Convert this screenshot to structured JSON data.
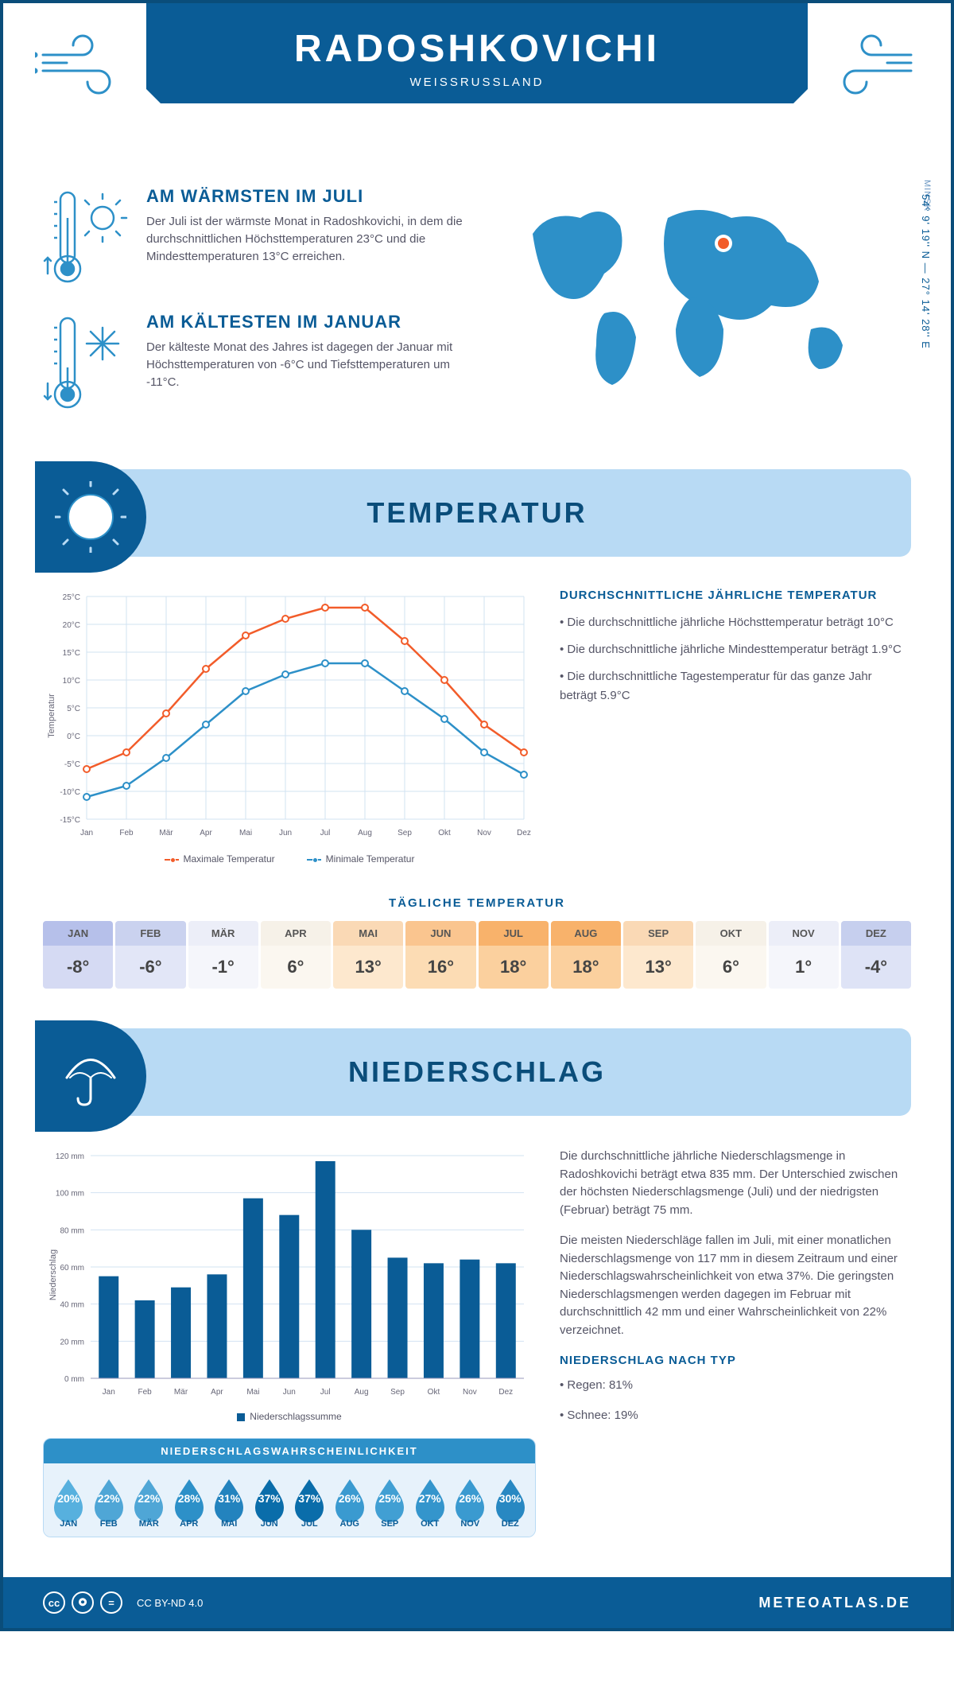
{
  "header": {
    "city": "RADOSHKOVICHI",
    "country": "WEISSRUSSLAND"
  },
  "coords": "54° 9' 19'' N — 27° 14' 28'' E",
  "city_label": "MINSK",
  "warm": {
    "title": "AM WÄRMSTEN IM JULI",
    "body": "Der Juli ist der wärmste Monat in Radoshkovichi, in dem die durchschnittlichen Höchsttemperaturen 23°C und die Mindesttemperaturen 13°C erreichen."
  },
  "cold": {
    "title": "AM KÄLTESTEN IM JANUAR",
    "body": "Der kälteste Monat des Jahres ist dagegen der Januar mit Höchsttemperaturen von -6°C und Tiefsttemperaturen um -11°C."
  },
  "temp": {
    "section_title": "TEMPERATUR",
    "months": [
      "Jan",
      "Feb",
      "Mär",
      "Apr",
      "Mai",
      "Jun",
      "Jul",
      "Aug",
      "Sep",
      "Okt",
      "Nov",
      "Dez"
    ],
    "max_series": [
      -6,
      -3,
      4,
      12,
      18,
      21,
      23,
      23,
      17,
      10,
      2,
      -3
    ],
    "min_series": [
      -11,
      -9,
      -4,
      2,
      8,
      11,
      13,
      13,
      8,
      3,
      -3,
      -7
    ],
    "max_color": "#f25c2a",
    "min_color": "#2d90c8",
    "ylim": [
      -15,
      25
    ],
    "ytick_step": 5,
    "y_unit": "°C",
    "y_title": "Temperatur",
    "grid_color": "#d2e3f2",
    "legend_max": "Maximale Temperatur",
    "legend_min": "Minimale Temperatur",
    "avg_title": "DURCHSCHNITTLICHE JÄHRLICHE TEMPERATUR",
    "avg_points": [
      "• Die durchschnittliche jährliche Höchsttemperatur beträgt 10°C",
      "• Die durchschnittliche jährliche Mindesttemperatur beträgt 1.9°C",
      "• Die durchschnittliche Tagestemperatur für das ganze Jahr beträgt 5.9°C"
    ],
    "daily_title": "TÄGLICHE TEMPERATUR",
    "daily_vals": [
      "-8°",
      "-6°",
      "-1°",
      "6°",
      "13°",
      "16°",
      "18°",
      "18°",
      "13°",
      "6°",
      "1°",
      "-4°"
    ],
    "daily_header_colors": [
      "#b6c0ea",
      "#cad2ef",
      "#eceef8",
      "#f6f1e8",
      "#fad9b5",
      "#fac58f",
      "#f8b26b",
      "#f8b26b",
      "#fad9b5",
      "#f6f1e8",
      "#eceef8",
      "#c6cfee"
    ],
    "daily_value_colors": [
      "#d5daf3",
      "#e2e6f7",
      "#f5f6fb",
      "#fbf7f0",
      "#fde8ce",
      "#fcdcb4",
      "#fbd09e",
      "#fbd09e",
      "#fde8ce",
      "#fbf7f0",
      "#f5f6fb",
      "#dee3f6"
    ],
    "daily_months": [
      "JAN",
      "FEB",
      "MÄR",
      "APR",
      "MAI",
      "JUN",
      "JUL",
      "AUG",
      "SEP",
      "OKT",
      "NOV",
      "DEZ"
    ]
  },
  "precip": {
    "section_title": "NIEDERSCHLAG",
    "months": [
      "Jan",
      "Feb",
      "Mär",
      "Apr",
      "Mai",
      "Jun",
      "Jul",
      "Aug",
      "Sep",
      "Okt",
      "Nov",
      "Dez"
    ],
    "values": [
      55,
      42,
      49,
      56,
      97,
      88,
      117,
      80,
      65,
      62,
      64,
      62
    ],
    "ylim": [
      0,
      120
    ],
    "ytick_step": 20,
    "y_unit": " mm",
    "y_title": "Niederschlag",
    "bar_color": "#0a5c96",
    "grid_color": "#d2e3f2",
    "legend": "Niederschlagssumme",
    "para1": "Die durchschnittliche jährliche Niederschlagsmenge in Radoshkovichi beträgt etwa 835 mm. Der Unterschied zwischen der höchsten Niederschlagsmenge (Juli) und der niedrigsten (Februar) beträgt 75 mm.",
    "para2": "Die meisten Niederschläge fallen im Juli, mit einer monatlichen Niederschlagsmenge von 117 mm in diesem Zeitraum und einer Niederschlagswahrscheinlichkeit von etwa 37%. Die geringsten Niederschlagsmengen werden dagegen im Februar mit durchschnittlich 42 mm und einer Wahrscheinlichkeit von 22% verzeichnet.",
    "type_title": "NIEDERSCHLAG NACH TYP",
    "type_rain": "• Regen: 81%",
    "type_snow": "• Schnee: 19%",
    "prob_title": "NIEDERSCHLAGSWAHRSCHEINLICHKEIT",
    "prob_pct": [
      "20%",
      "22%",
      "22%",
      "28%",
      "31%",
      "37%",
      "37%",
      "26%",
      "25%",
      "27%",
      "26%",
      "30%"
    ],
    "prob_colors": [
      "#57b0de",
      "#4fa6d6",
      "#4fa6d6",
      "#2d90c8",
      "#2383be",
      "#0a6daa",
      "#0a6daa",
      "#3a9ad0",
      "#419fd3",
      "#3495cc",
      "#3a9ad0",
      "#2888c2"
    ],
    "prob_months": [
      "JAN",
      "FEB",
      "MÄR",
      "APR",
      "MAI",
      "JUN",
      "JUL",
      "AUG",
      "SEP",
      "OKT",
      "NOV",
      "DEZ"
    ]
  },
  "footer": {
    "license": "CC BY-ND 4.0",
    "brand": "METEOATLAS.DE"
  }
}
